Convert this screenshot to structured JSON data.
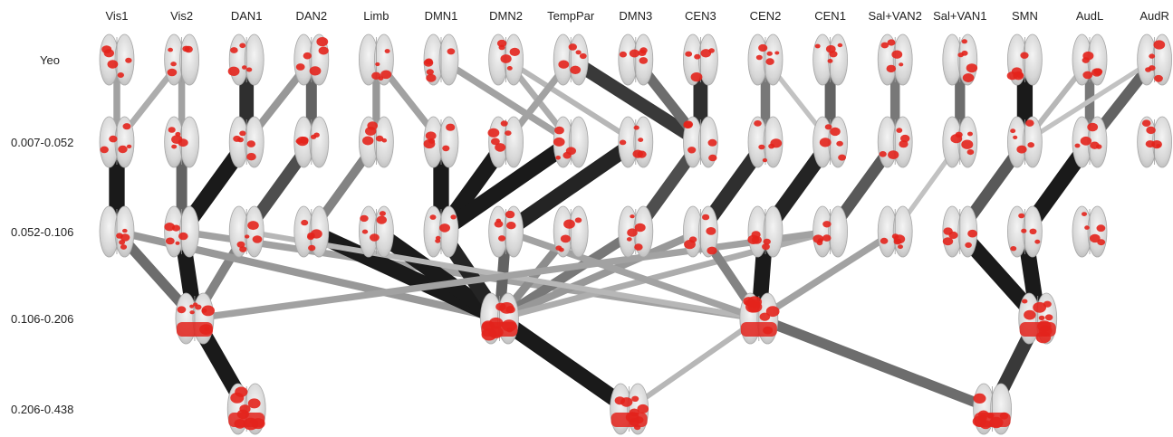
{
  "columns": [
    "Vis1",
    "Vis2",
    "DAN1",
    "DAN2",
    "Limb",
    "DMN1",
    "DMN2",
    "TempPar",
    "DMN3",
    "CEN3",
    "CEN2",
    "CEN1",
    "Sal+VAN2",
    "Sal+VAN1",
    "SMN",
    "AudL",
    "AudR"
  ],
  "rows": [
    "Yeo",
    "0.007-0.052",
    "0.052-0.106",
    "0.106-0.206",
    "0.206-0.438"
  ],
  "colors": {
    "activation": "#e3231c",
    "brain": "#d9d9d9",
    "brain_edge": "#a8a8a8",
    "link_strong": "#111111",
    "link_weak": "#dcdcdc"
  },
  "nodes": [
    {
      "id": "y0",
      "row": 0,
      "col": 0
    },
    {
      "id": "y1",
      "row": 0,
      "col": 1
    },
    {
      "id": "y2",
      "row": 0,
      "col": 2
    },
    {
      "id": "y3",
      "row": 0,
      "col": 3
    },
    {
      "id": "y4",
      "row": 0,
      "col": 4
    },
    {
      "id": "y5",
      "row": 0,
      "col": 5
    },
    {
      "id": "y6",
      "row": 0,
      "col": 6
    },
    {
      "id": "y7",
      "row": 0,
      "col": 7
    },
    {
      "id": "y8",
      "row": 0,
      "col": 8
    },
    {
      "id": "y9",
      "row": 0,
      "col": 9
    },
    {
      "id": "y10",
      "row": 0,
      "col": 10
    },
    {
      "id": "y11",
      "row": 0,
      "col": 11
    },
    {
      "id": "y12",
      "row": 0,
      "col": 12
    },
    {
      "id": "y13",
      "row": 0,
      "col": 13
    },
    {
      "id": "y14",
      "row": 0,
      "col": 14
    },
    {
      "id": "y15",
      "row": 0,
      "col": 15
    },
    {
      "id": "y16",
      "row": 0,
      "col": 16
    },
    {
      "id": "a0",
      "row": 1,
      "col": 0
    },
    {
      "id": "a1",
      "row": 1,
      "col": 1
    },
    {
      "id": "a2",
      "row": 1,
      "col": 2
    },
    {
      "id": "a3",
      "row": 1,
      "col": 3
    },
    {
      "id": "a4",
      "row": 1,
      "col": 4
    },
    {
      "id": "a5",
      "row": 1,
      "col": 5
    },
    {
      "id": "a6",
      "row": 1,
      "col": 6
    },
    {
      "id": "a7",
      "row": 1,
      "col": 7
    },
    {
      "id": "a8",
      "row": 1,
      "col": 8
    },
    {
      "id": "a9",
      "row": 1,
      "col": 9
    },
    {
      "id": "a10",
      "row": 1,
      "col": 10
    },
    {
      "id": "a11",
      "row": 1,
      "col": 11
    },
    {
      "id": "a12",
      "row": 1,
      "col": 12
    },
    {
      "id": "a13",
      "row": 1,
      "col": 13
    },
    {
      "id": "a14",
      "row": 1,
      "col": 14
    },
    {
      "id": "a15",
      "row": 1,
      "col": 15
    },
    {
      "id": "a16",
      "row": 1,
      "col": 16
    },
    {
      "id": "b0",
      "row": 2,
      "col": 0
    },
    {
      "id": "b1",
      "row": 2,
      "col": 1
    },
    {
      "id": "b2",
      "row": 2,
      "col": 2
    },
    {
      "id": "b3",
      "row": 2,
      "col": 3
    },
    {
      "id": "b4",
      "row": 2,
      "col": 4
    },
    {
      "id": "b5",
      "row": 2,
      "col": 5
    },
    {
      "id": "b6",
      "row": 2,
      "col": 6
    },
    {
      "id": "b7",
      "row": 2,
      "col": 7
    },
    {
      "id": "b8",
      "row": 2,
      "col": 8
    },
    {
      "id": "b9",
      "row": 2,
      "col": 9
    },
    {
      "id": "b10",
      "row": 2,
      "col": 10
    },
    {
      "id": "b11",
      "row": 2,
      "col": 11
    },
    {
      "id": "b12",
      "row": 2,
      "col": 12
    },
    {
      "id": "b13",
      "row": 2,
      "col": 13
    },
    {
      "id": "b14",
      "row": 2,
      "col": 14
    },
    {
      "id": "b15",
      "row": 2,
      "col": 15
    },
    {
      "id": "c0",
      "row": 3,
      "col": 1.2
    },
    {
      "id": "c1",
      "row": 3,
      "col": 5.9
    },
    {
      "id": "c2",
      "row": 3,
      "col": 9.9
    },
    {
      "id": "c3",
      "row": 3,
      "col": 14.2
    },
    {
      "id": "d0",
      "row": 4,
      "col": 2
    },
    {
      "id": "d1",
      "row": 4,
      "col": 7.9
    },
    {
      "id": "d2",
      "row": 4,
      "col": 13.5
    }
  ],
  "links": [
    {
      "from": "y0",
      "to": "a0",
      "w": 0.3
    },
    {
      "from": "y1",
      "to": "a0",
      "w": 0.25
    },
    {
      "from": "y1",
      "to": "a1",
      "w": 0.3
    },
    {
      "from": "y2",
      "to": "a2",
      "w": 0.85
    },
    {
      "from": "y3",
      "to": "a3",
      "w": 0.6
    },
    {
      "from": "y3",
      "to": "a2",
      "w": 0.35
    },
    {
      "from": "y4",
      "to": "a4",
      "w": 0.35
    },
    {
      "from": "y4",
      "to": "a5",
      "w": 0.3
    },
    {
      "from": "y5",
      "to": "a7",
      "w": 0.3
    },
    {
      "from": "y6",
      "to": "a7",
      "w": 0.25
    },
    {
      "from": "y6",
      "to": "a8",
      "w": 0.2
    },
    {
      "from": "y7",
      "to": "a9",
      "w": 0.8
    },
    {
      "from": "y7",
      "to": "a6",
      "w": 0.3
    },
    {
      "from": "y8",
      "to": "a9",
      "w": 0.55
    },
    {
      "from": "y9",
      "to": "a9",
      "w": 0.85
    },
    {
      "from": "y10",
      "to": "a10",
      "w": 0.5
    },
    {
      "from": "y10",
      "to": "a11",
      "w": 0.15
    },
    {
      "from": "y11",
      "to": "a11",
      "w": 0.6
    },
    {
      "from": "y12",
      "to": "a12",
      "w": 0.5
    },
    {
      "from": "y13",
      "to": "a13",
      "w": 0.55
    },
    {
      "from": "y14",
      "to": "a14",
      "w": 0.95
    },
    {
      "from": "y15",
      "to": "a15",
      "w": 0.5
    },
    {
      "from": "y15",
      "to": "a14",
      "w": 0.2
    },
    {
      "from": "y16",
      "to": "a15",
      "w": 0.6
    },
    {
      "from": "y16",
      "to": "a14",
      "w": 0.15
    },
    {
      "from": "a0",
      "to": "b0",
      "w": 0.95
    },
    {
      "from": "a1",
      "to": "b1",
      "w": 0.6
    },
    {
      "from": "a2",
      "to": "b1",
      "w": 0.95
    },
    {
      "from": "a3",
      "to": "b2",
      "w": 0.7
    },
    {
      "from": "a4",
      "to": "b3",
      "w": 0.45
    },
    {
      "from": "a5",
      "to": "b5",
      "w": 0.95
    },
    {
      "from": "a6",
      "to": "b5",
      "w": 0.95
    },
    {
      "from": "a7",
      "to": "b5",
      "w": 0.95
    },
    {
      "from": "a8",
      "to": "b6",
      "w": 0.9
    },
    {
      "from": "a9",
      "to": "b8",
      "w": 0.7
    },
    {
      "from": "a10",
      "to": "b9",
      "w": 0.85
    },
    {
      "from": "a11",
      "to": "b10",
      "w": 0.9
    },
    {
      "from": "a12",
      "to": "b11",
      "w": 0.65
    },
    {
      "from": "a13",
      "to": "b12",
      "w": 0.15
    },
    {
      "from": "a14",
      "to": "b13",
      "w": 0.65
    },
    {
      "from": "a15",
      "to": "b14",
      "w": 0.95
    },
    {
      "from": "b0",
      "to": "c0",
      "w": 0.55
    },
    {
      "from": "b1",
      "to": "c0",
      "w": 0.95
    },
    {
      "from": "b2",
      "to": "c0",
      "w": 0.45
    },
    {
      "from": "b0",
      "to": "c1",
      "w": 0.35
    },
    {
      "from": "b1",
      "to": "c2",
      "w": 0.3
    },
    {
      "from": "b3",
      "to": "c1",
      "w": 0.95
    },
    {
      "from": "b4",
      "to": "c1",
      "w": 0.95
    },
    {
      "from": "b5",
      "to": "c1",
      "w": 0.9
    },
    {
      "from": "b6",
      "to": "c1",
      "w": 0.6
    },
    {
      "from": "b7",
      "to": "c1",
      "w": 0.4
    },
    {
      "from": "b8",
      "to": "c1",
      "w": 0.5
    },
    {
      "from": "b9",
      "to": "c1",
      "w": 0.35
    },
    {
      "from": "b11",
      "to": "c1",
      "w": 0.25
    },
    {
      "from": "b2",
      "to": "c2",
      "w": 0.2
    },
    {
      "from": "b9",
      "to": "c2",
      "w": 0.45
    },
    {
      "from": "b10",
      "to": "c2",
      "w": 0.95
    },
    {
      "from": "b6",
      "to": "c2",
      "w": 0.3
    },
    {
      "from": "b12",
      "to": "c2",
      "w": 0.3
    },
    {
      "from": "b11",
      "to": "c0",
      "w": 0.3
    },
    {
      "from": "b13",
      "to": "c3",
      "w": 0.95
    },
    {
      "from": "b14",
      "to": "c3",
      "w": 0.95
    },
    {
      "from": "c0",
      "to": "d0",
      "w": 0.95
    },
    {
      "from": "c1",
      "to": "d1",
      "w": 0.95
    },
    {
      "from": "c2",
      "to": "d1",
      "w": 0.2
    },
    {
      "from": "c2",
      "to": "d2",
      "w": 0.55
    },
    {
      "from": "c3",
      "to": "d2",
      "w": 0.8
    }
  ]
}
